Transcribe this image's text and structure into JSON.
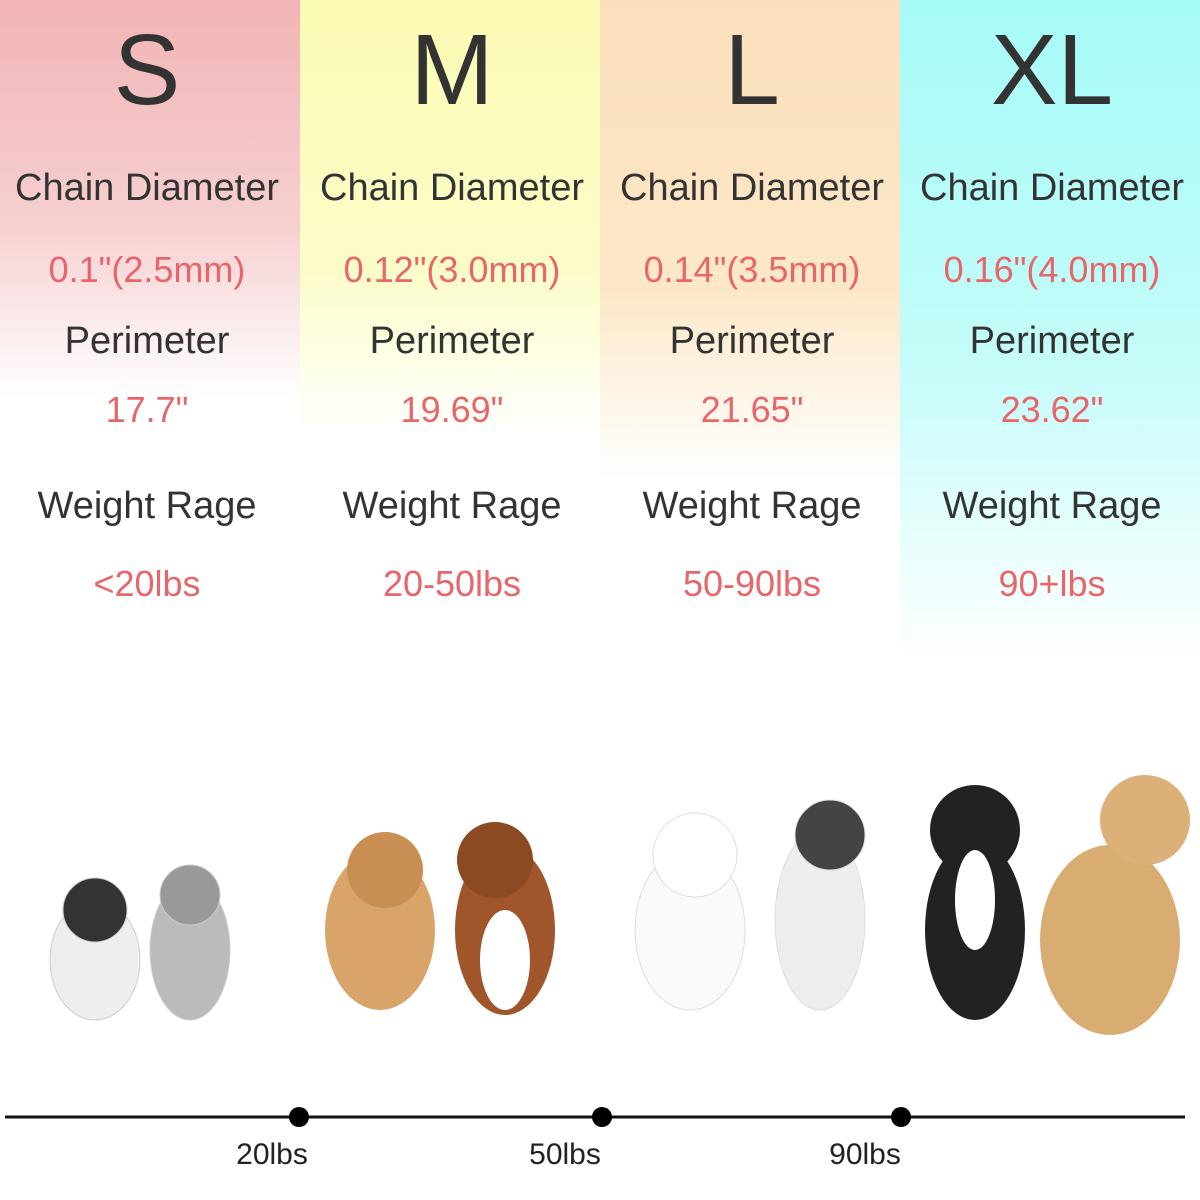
{
  "columns": [
    {
      "size": "S",
      "chain_label": "Chain Diameter",
      "chain_value": "0.1\"(2.5mm)",
      "perimeter_label": "Perimeter",
      "perimeter_value": "17.7\"",
      "weight_label": "Weight Rage",
      "weight_value": "<20lbs"
    },
    {
      "size": "M",
      "chain_label": "Chain Diameter",
      "chain_value": "0.12\"(3.0mm)",
      "perimeter_label": "Perimeter",
      "perimeter_value": "19.69\"",
      "weight_label": "Weight Rage",
      "weight_value": "20-50lbs"
    },
    {
      "size": "L",
      "chain_label": "Chain Diameter",
      "chain_value": "0.14\"(3.5mm)",
      "perimeter_label": "Perimeter",
      "perimeter_value": "21.65\"",
      "weight_label": "Weight Rage",
      "weight_value": "50-90lbs"
    },
    {
      "size": "XL",
      "chain_label": "Chain Diameter",
      "chain_value": "0.16\"(4.0mm)",
      "perimeter_label": "Perimeter",
      "perimeter_value": "23.62\"",
      "weight_label": "Weight Rage",
      "weight_value": "90+lbs"
    }
  ],
  "scale": {
    "ticks": [
      "20lbs",
      "50lbs",
      "90lbs"
    ]
  }
}
